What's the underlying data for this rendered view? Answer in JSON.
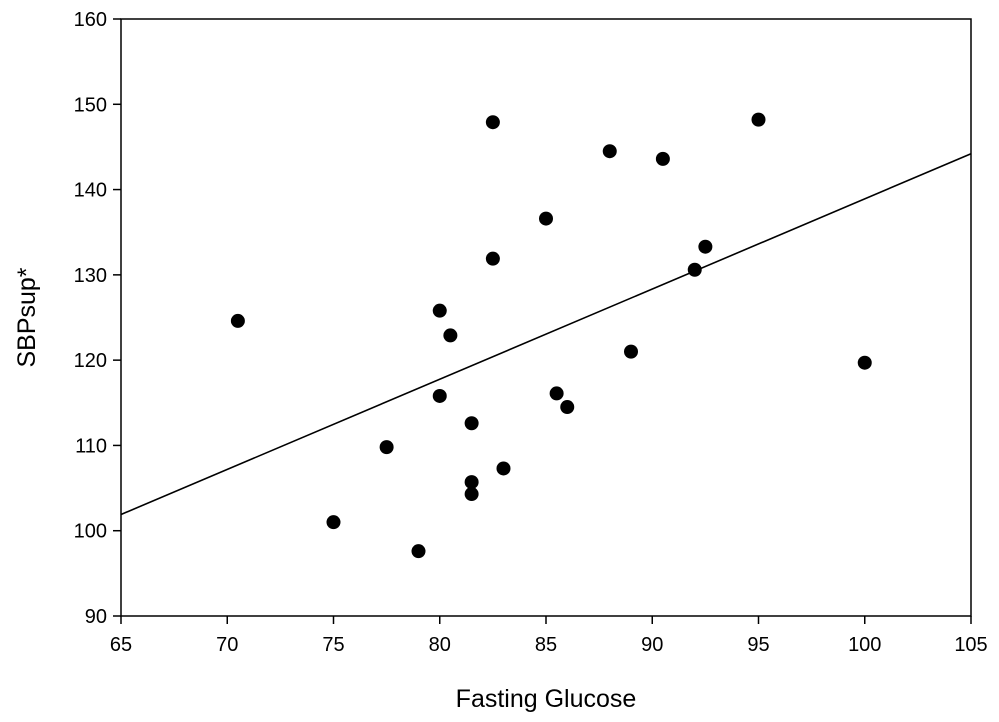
{
  "chart_data": {
    "type": "scatter",
    "title": "",
    "xlabel": "Fasting Glucose",
    "ylabel": "SBPsup*",
    "xlim": [
      65,
      105
    ],
    "ylim": [
      90,
      160
    ],
    "x_ticks": [
      65,
      70,
      75,
      80,
      85,
      90,
      95,
      100,
      105
    ],
    "y_ticks": [
      90,
      100,
      110,
      120,
      130,
      140,
      150,
      160
    ],
    "grid": false,
    "legend": "none",
    "marker_color": "#000000",
    "series": [
      {
        "points": [
          {
            "x": 70.5,
            "y": 124.6
          },
          {
            "x": 75.0,
            "y": 101.0
          },
          {
            "x": 77.5,
            "y": 109.8
          },
          {
            "x": 79.0,
            "y": 97.6
          },
          {
            "x": 80.0,
            "y": 125.8
          },
          {
            "x": 80.0,
            "y": 115.8
          },
          {
            "x": 80.5,
            "y": 122.9
          },
          {
            "x": 81.5,
            "y": 112.6
          },
          {
            "x": 81.5,
            "y": 105.7
          },
          {
            "x": 81.5,
            "y": 104.3
          },
          {
            "x": 82.5,
            "y": 147.9
          },
          {
            "x": 82.5,
            "y": 131.9
          },
          {
            "x": 83.0,
            "y": 107.3
          },
          {
            "x": 85.0,
            "y": 136.6
          },
          {
            "x": 85.5,
            "y": 116.1
          },
          {
            "x": 86.0,
            "y": 114.5
          },
          {
            "x": 88.0,
            "y": 144.5
          },
          {
            "x": 89.0,
            "y": 121.0
          },
          {
            "x": 90.5,
            "y": 143.6
          },
          {
            "x": 92.0,
            "y": 130.6
          },
          {
            "x": 92.5,
            "y": 133.3
          },
          {
            "x": 95.0,
            "y": 148.2
          },
          {
            "x": 100.0,
            "y": 119.7
          }
        ]
      }
    ],
    "trendline": {
      "x": [
        65,
        105
      ],
      "y": [
        101.9,
        144.2
      ]
    }
  }
}
